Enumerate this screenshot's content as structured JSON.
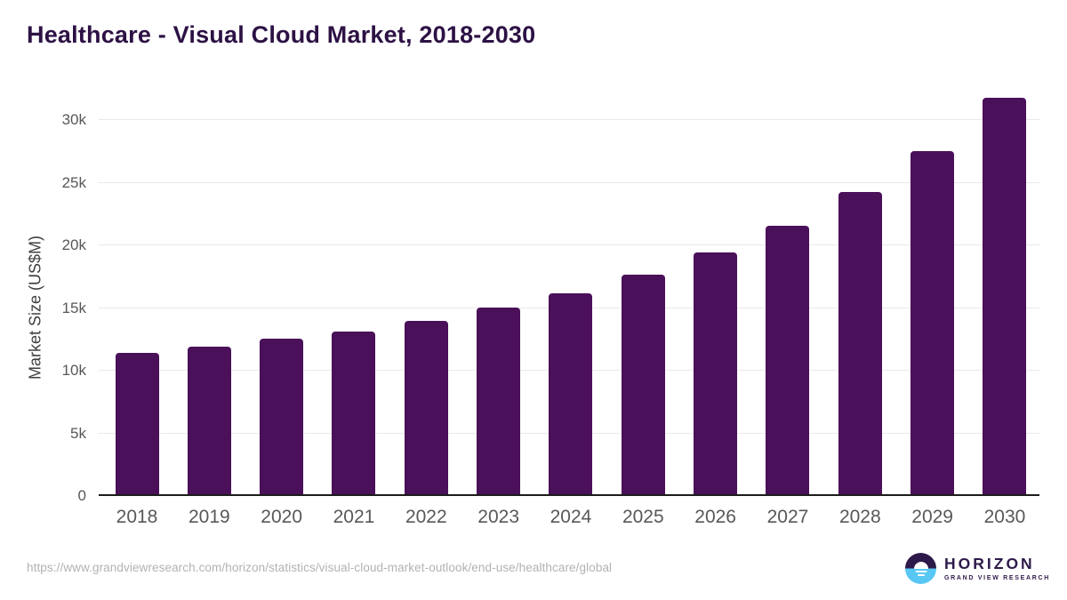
{
  "title": "Healthcare - Visual Cloud Market, 2018-2030",
  "chart_data": {
    "type": "bar",
    "title": "Healthcare - Visual Cloud Market, 2018-2030",
    "categories": [
      "2018",
      "2019",
      "2020",
      "2021",
      "2022",
      "2023",
      "2024",
      "2025",
      "2026",
      "2027",
      "2028",
      "2029",
      "2030"
    ],
    "values": [
      11300,
      11800,
      12400,
      13000,
      13800,
      14900,
      16000,
      17500,
      19300,
      21400,
      24100,
      27400,
      31600
    ],
    "unit": "US$M",
    "xlabel": "",
    "ylabel": "Market Size (US$M)",
    "ylim": [
      0,
      32500
    ],
    "yticks": [
      0,
      5000,
      10000,
      15000,
      20000,
      25000,
      30000
    ],
    "ytick_labels": [
      "0",
      "5k",
      "10k",
      "15k",
      "20k",
      "25k",
      "30k"
    ],
    "grid": true,
    "legend": "none",
    "bar_color": "#4a1059"
  },
  "colors": {
    "bar": "#4a1059",
    "title_text": "#2d1245",
    "axis_line": "#1c1c1c",
    "grid_line": "#e9e9e9",
    "tick_text": "#57585a",
    "url_text": "#b2b2b2",
    "logo_purple": "#2e1a4a",
    "logo_blue": "#58c7f3"
  },
  "footer": {
    "source_url": "https://www.grandviewresearch.com/horizon/statistics/visual-cloud-market-outlook/end-use/healthcare/global",
    "logo": {
      "brand": "HORIZON",
      "tagline": "GRAND VIEW RESEARCH"
    }
  }
}
